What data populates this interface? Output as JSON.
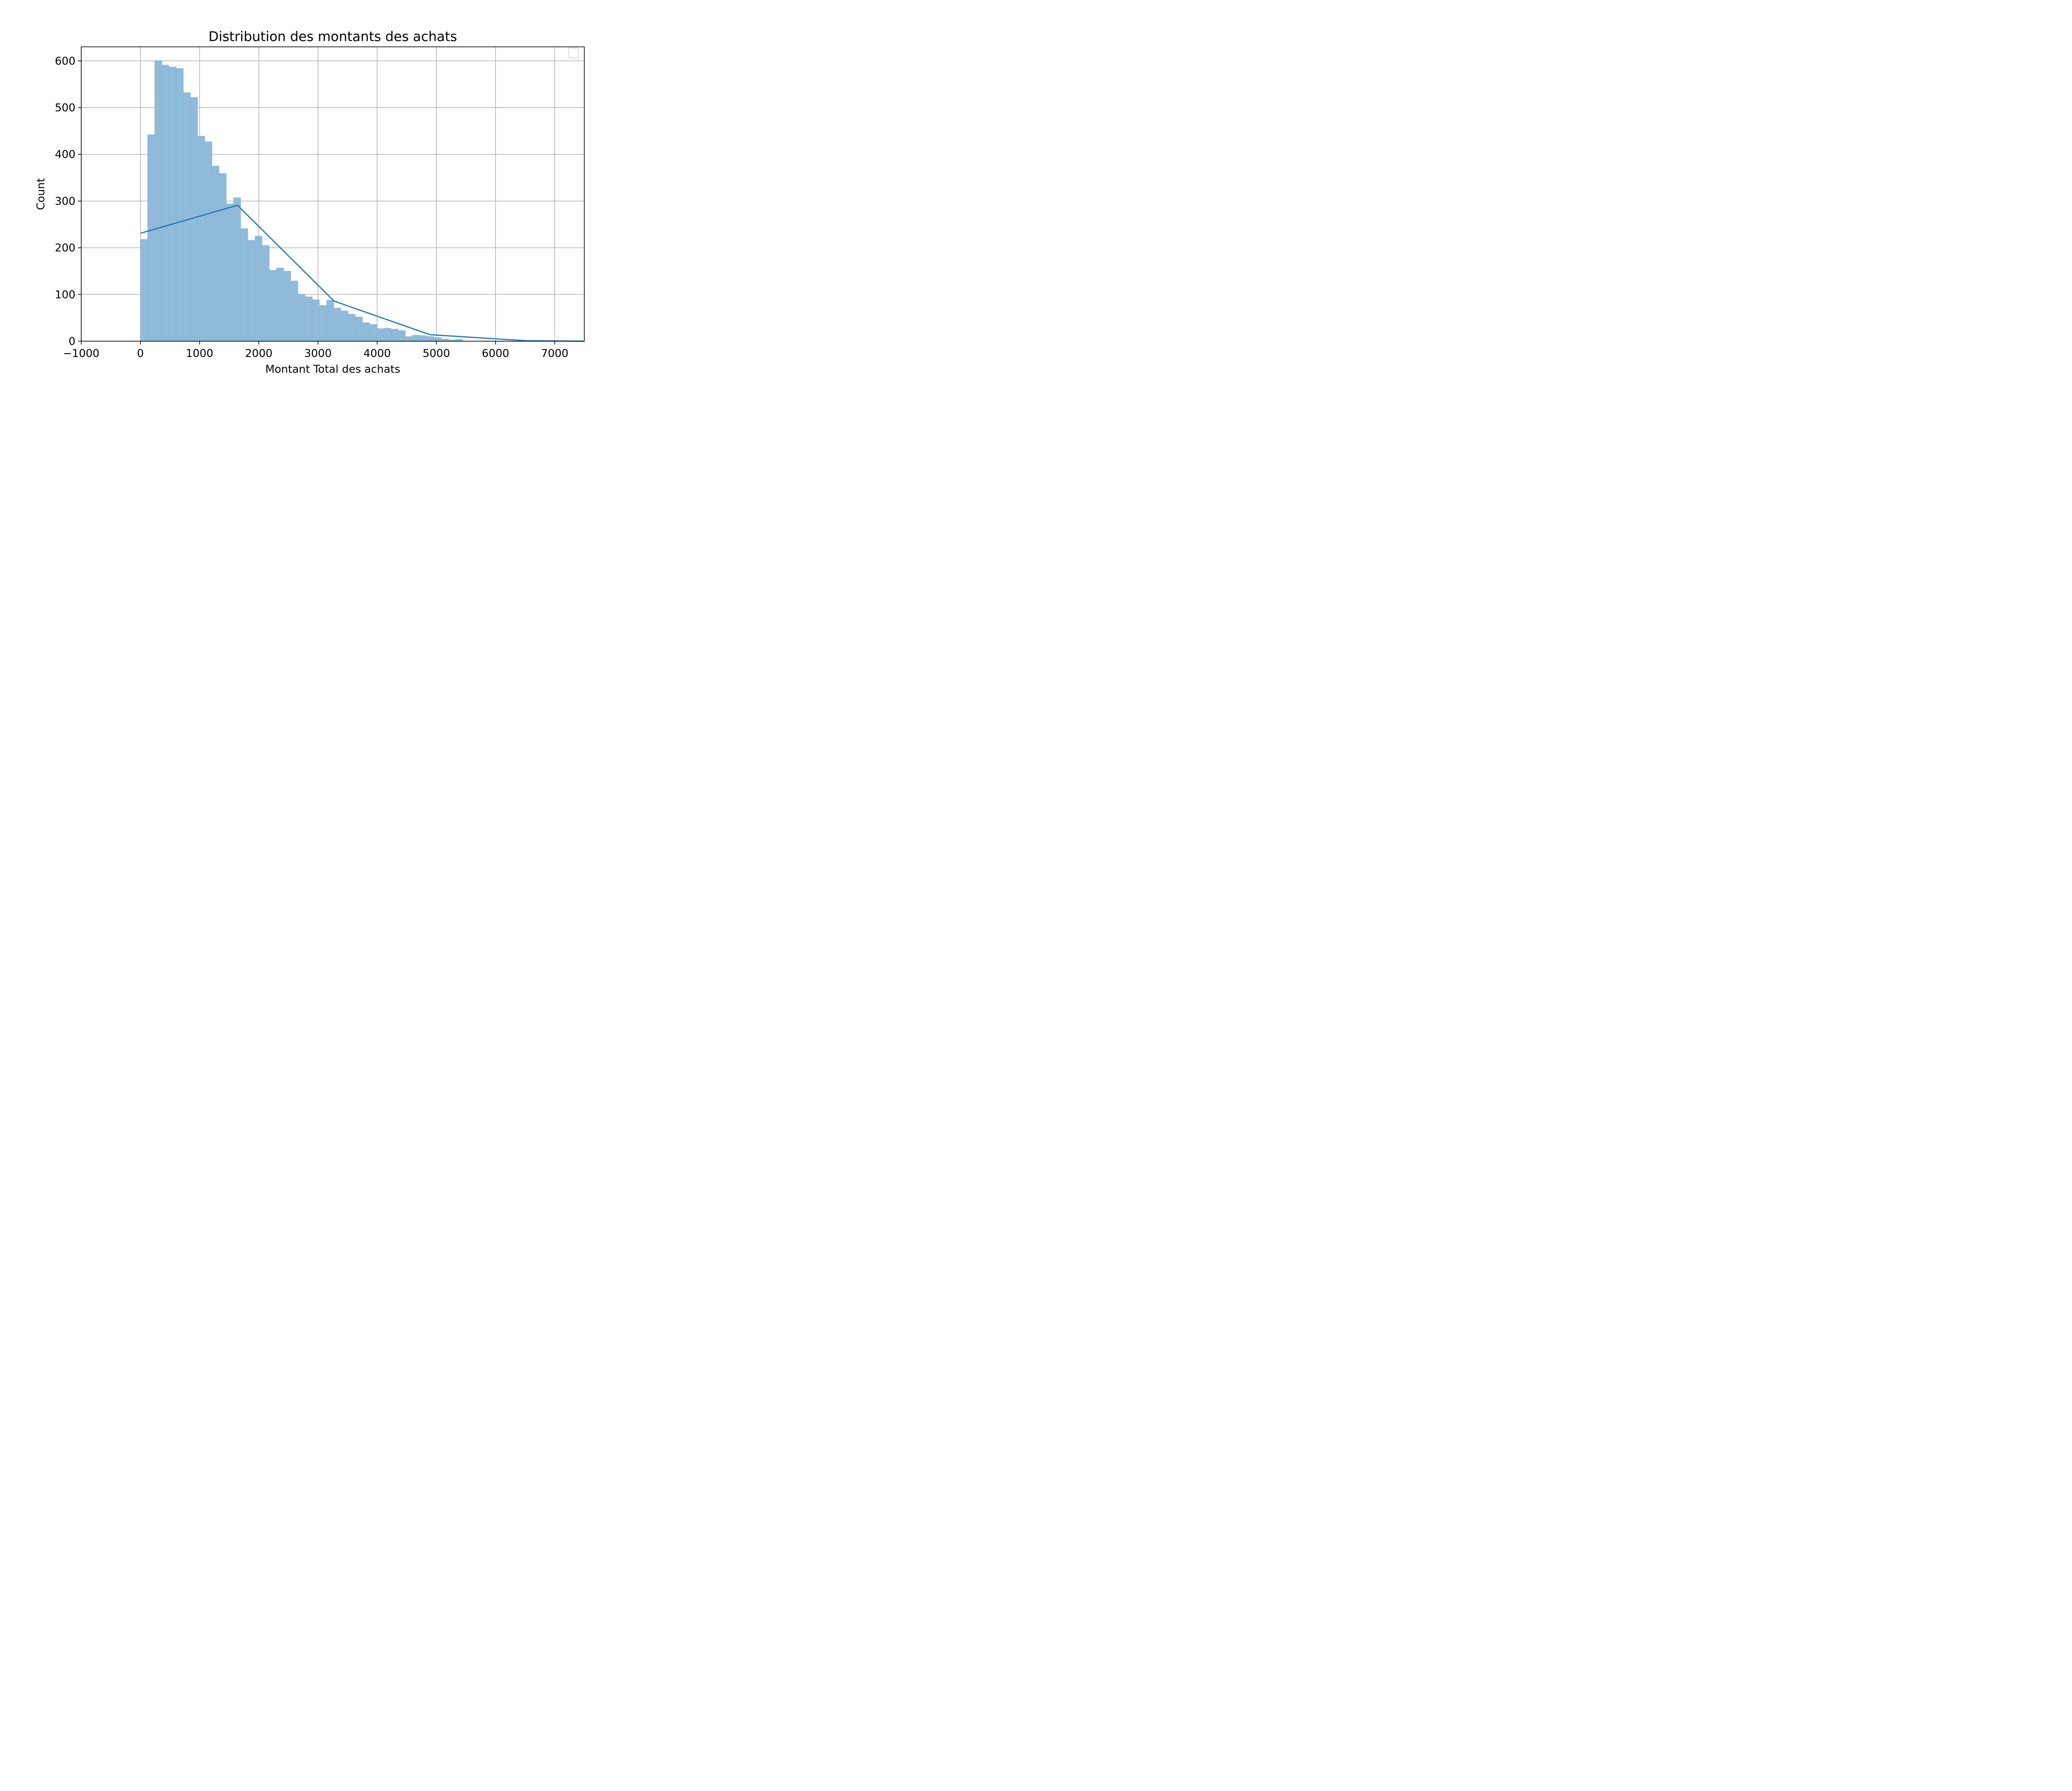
{
  "chart_data": {
    "type": "bar",
    "title": "Distribution des montants des achats",
    "xlabel": "Montant Total des achats",
    "ylabel": "Count",
    "xlim": [
      -1000,
      7500
    ],
    "ylim": [
      0,
      630
    ],
    "xticks": [
      -1000,
      0,
      1000,
      2000,
      3000,
      4000,
      5000,
      6000,
      7000
    ],
    "xtick_labels": [
      "−1000",
      "0",
      "1000",
      "2000",
      "3000",
      "4000",
      "5000",
      "6000",
      "7000"
    ],
    "yticks": [
      0,
      100,
      200,
      300,
      400,
      500,
      600
    ],
    "ytick_labels": [
      "0",
      "100",
      "200",
      "300",
      "400",
      "500",
      "600"
    ],
    "grid": true,
    "legend": {
      "placement": "top-right",
      "entries": []
    },
    "histogram": {
      "bin_start": 0,
      "bin_width": 121,
      "counts": [
        218,
        442,
        601,
        591,
        587,
        584,
        532,
        522,
        439,
        427,
        375,
        359,
        294,
        307,
        241,
        216,
        225,
        205,
        152,
        157,
        150,
        129,
        101,
        95,
        89,
        77,
        88,
        71,
        65,
        58,
        52,
        40,
        36,
        27,
        28,
        26,
        23,
        10,
        13,
        12,
        10,
        8,
        5,
        3,
        4
      ],
      "color": "#8fbad9",
      "edge_color": "#7fb0d4"
    },
    "line": {
      "color": "#1f77b4",
      "x": [
        0,
        1640,
        3270,
        4890,
        6520,
        7500
      ],
      "y": [
        231,
        291,
        86,
        14,
        1,
        0
      ]
    }
  }
}
